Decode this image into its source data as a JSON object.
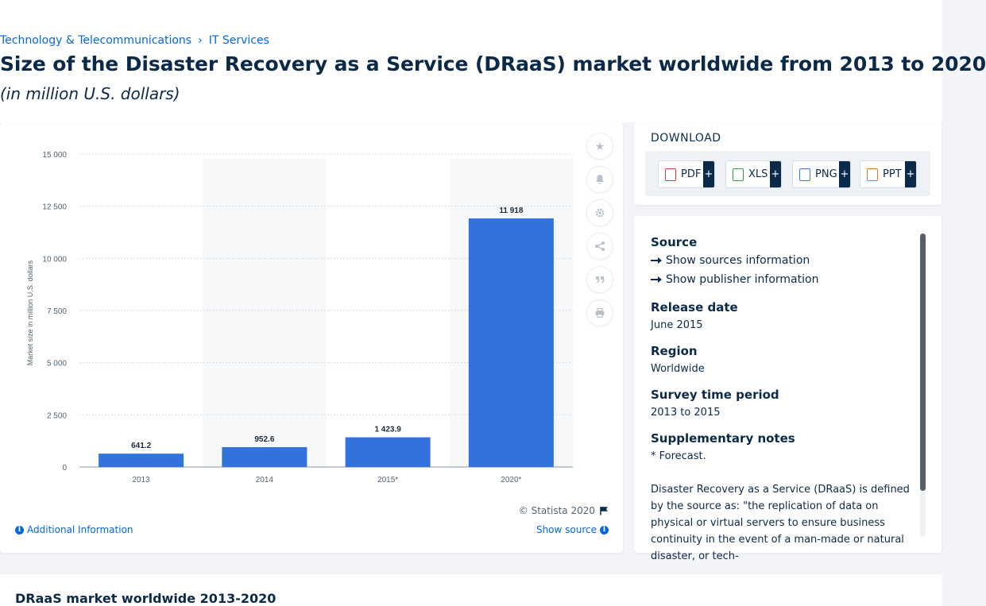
{
  "breadcrumb": [
    "Technology & Telecommunications",
    "IT Services"
  ],
  "page": {
    "title": "Size of the Disaster Recovery as a Service (DRaaS) market worldwide from 2013 to 2020",
    "subtitle": "(in million U.S. dollars)"
  },
  "chart_data": {
    "type": "bar",
    "categories": [
      "2013",
      "2014",
      "2015*",
      "2020*"
    ],
    "values": [
      641.2,
      952.6,
      1423.9,
      11918
    ],
    "value_labels": [
      "641.2",
      "952.6",
      "1 423.9",
      "11 918"
    ],
    "ylabel": "Market size in million U.S. dollars",
    "ylim": [
      0,
      15000
    ],
    "yticks": [
      0,
      2500,
      5000,
      7500,
      10000,
      12500,
      15000
    ],
    "ytick_labels": [
      "0",
      "2 500",
      "5 000",
      "7 500",
      "10 000",
      "12 500",
      "15 000"
    ],
    "grid": true,
    "bar_color": "#3172dd"
  },
  "chart_footer": {
    "copyright": "© Statista 2020",
    "additional_info": "Additional Information",
    "show_source": "Show source"
  },
  "download": {
    "title": "DOWNLOAD",
    "formats": [
      "PDF",
      "XLS",
      "PNG",
      "PPT"
    ],
    "plus": "+"
  },
  "source_panel": {
    "source_heading": "Source",
    "show_sources": "Show sources information",
    "show_publisher": "Show publisher information",
    "release_heading": "Release date",
    "release_value": "June 2015",
    "region_heading": "Region",
    "region_value": "Worldwide",
    "survey_heading": "Survey time period",
    "survey_value": "2013 to 2015",
    "notes_heading": "Supplementary notes",
    "notes_value": "* Forecast.",
    "description": "Disaster Recovery as a Service (DRaaS) is defined by the source as: \"the replication of data on physical or virtual servers to ensure business continuity in the event of a man-made or natural disaster, or tech-"
  },
  "bottom": {
    "title": "DRaaS market worldwide 2013-2020"
  }
}
